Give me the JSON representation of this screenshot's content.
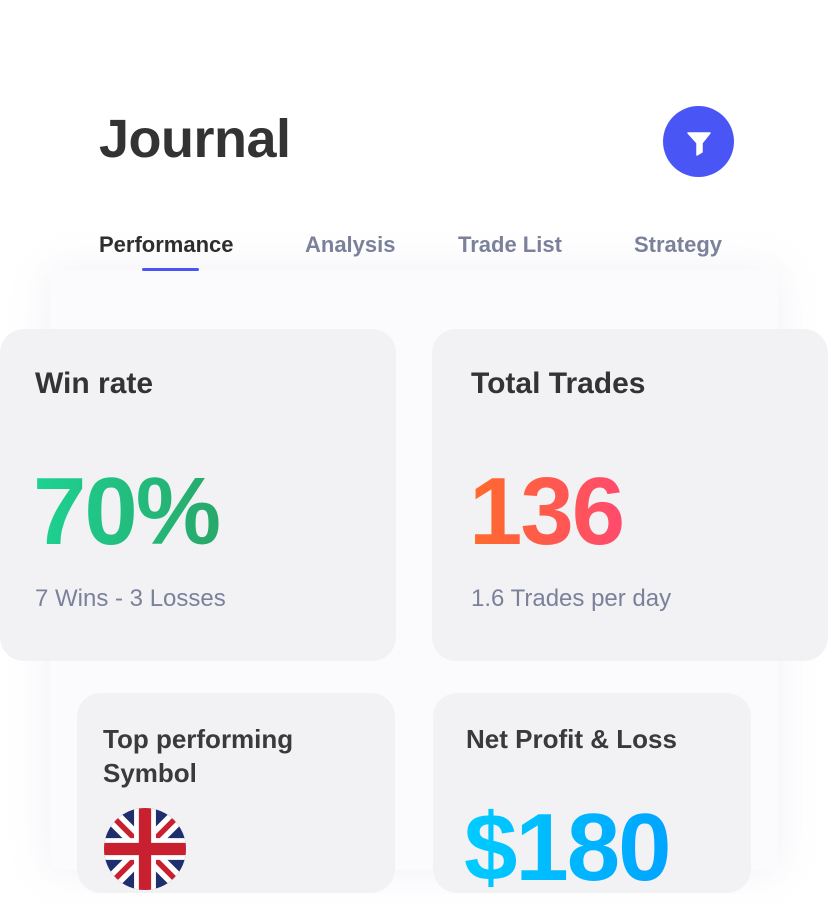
{
  "header": {
    "title": "Journal",
    "filter_icon": "filter-icon",
    "accent": "#4a55f5"
  },
  "tabs": [
    {
      "label": "Performance",
      "active": true
    },
    {
      "label": "Analysis"
    },
    {
      "label": "Trade List"
    },
    {
      "label": "Strategy"
    }
  ],
  "cards": {
    "win_rate": {
      "title": "Win rate",
      "value": "70%",
      "detail": "7 Wins - 3 Losses",
      "colors": [
        "#1dd393",
        "#28a86a"
      ]
    },
    "total_trades": {
      "title": "Total Trades",
      "value": "136",
      "detail": "1.6 Trades per day",
      "colors": [
        "#ff6b2a",
        "#ff4a6e"
      ]
    },
    "top_symbol": {
      "title": "Top performing Symbol",
      "flag_icon": "uk-flag-icon"
    },
    "net_pnl": {
      "title": "Net Profit & Loss",
      "value": "$180",
      "colors": [
        "#00ccff",
        "#00a4ff"
      ]
    }
  }
}
